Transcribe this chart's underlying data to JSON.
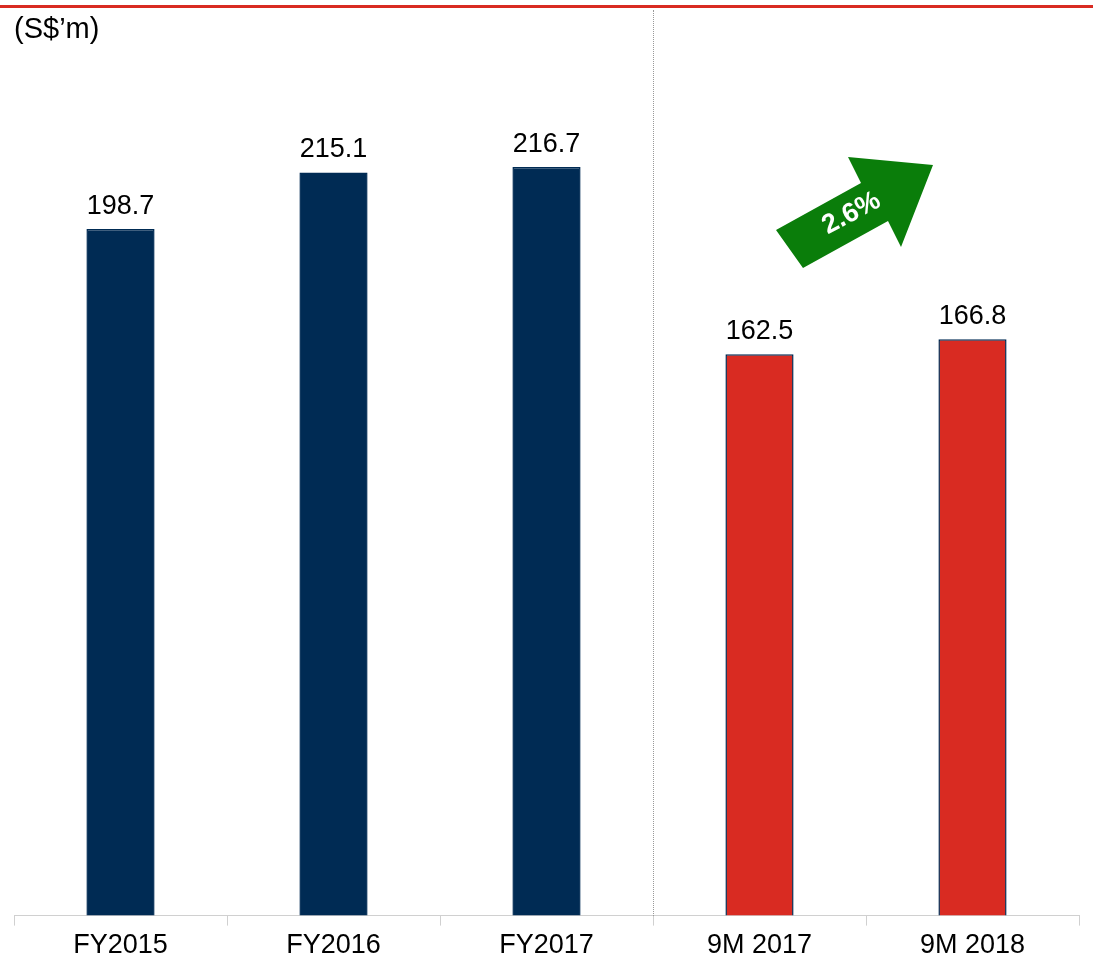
{
  "chart_data": {
    "type": "bar",
    "ylabel": "(S$’m)",
    "categories": [
      "FY2015",
      "FY2016",
      "FY2017",
      "9M 2017",
      "9M 2018"
    ],
    "values": [
      198.7,
      215.1,
      216.7,
      162.5,
      166.8
    ],
    "colors": [
      "#002b54",
      "#002b54",
      "#002b54",
      "#d92b22",
      "#d92b22"
    ],
    "ylim": [
      0,
      265
    ],
    "data_labels": true,
    "grid": false,
    "legend": false,
    "annotations": [
      "2.6%"
    ]
  }
}
